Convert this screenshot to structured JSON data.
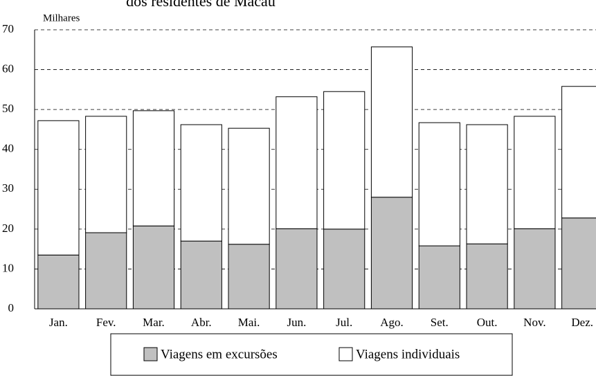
{
  "chart_data": {
    "type": "stacked_bar",
    "title": "dos residentes de Macau",
    "y_axis_label": "Milhares",
    "categories": [
      "Jan.",
      "Fev.",
      "Mar.",
      "Abr.",
      "Mai.",
      "Jun.",
      "Jul.",
      "Ago.",
      "Set.",
      "Out.",
      "Nov.",
      "Dez."
    ],
    "series": [
      {
        "name": "Viagens em excursões",
        "color": "#c0c0c0",
        "values": [
          13.5,
          19.1,
          20.8,
          17.0,
          16.2,
          20.1,
          20.0,
          28.0,
          15.8,
          16.3,
          20.1,
          22.8
        ]
      },
      {
        "name": "Viagens individuais",
        "color": "#ffffff",
        "values": [
          33.7,
          29.2,
          28.9,
          29.2,
          29.1,
          33.1,
          34.5,
          37.7,
          30.9,
          29.9,
          28.2,
          33.0
        ]
      }
    ],
    "ylim": [
      0,
      70
    ],
    "yticks": [
      0,
      10,
      20,
      30,
      40,
      50,
      60,
      70
    ],
    "grid": true,
    "legend": "bottom"
  }
}
